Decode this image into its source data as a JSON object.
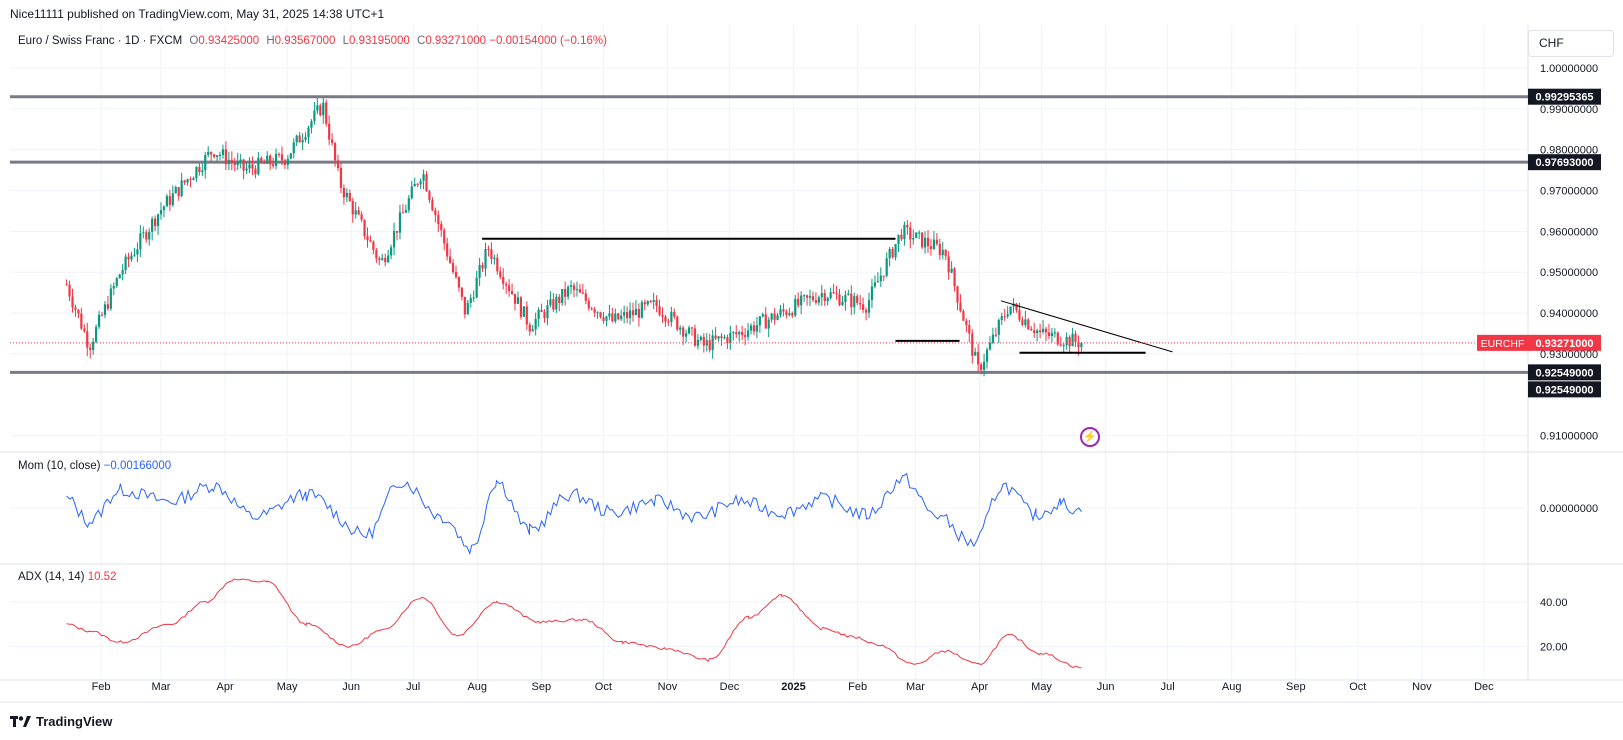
{
  "header": {
    "publisher": "Nice11111 published on TradingView.com, May 31, 2025 14:38 UTC+1"
  },
  "legend": {
    "symbol": "Euro / Swiss Franc · 1D · FXCM",
    "o_label": "O",
    "o": "0.93425000",
    "h_label": "H",
    "h": "0.93567000",
    "l_label": "L",
    "l": "0.93195000",
    "c_label": "C",
    "c": "0.93271000",
    "change": "−0.00154000 (−0.16%)"
  },
  "currency": "CHF",
  "mom_legend": {
    "name": "Mom (10, close)",
    "value": "−0.00166000"
  },
  "adx_legend": {
    "name": "ADX (14, 14)",
    "value": "10.52"
  },
  "footer": {
    "logo_text": "TradingView"
  },
  "colors": {
    "up": "#089981",
    "down": "#f23645",
    "mom": "#2962ff",
    "adx": "#f23645",
    "hline": "#787b86",
    "drawing": "#000000",
    "alert": "#9c27b0"
  },
  "chart_data": [
    {
      "type": "candlestick",
      "symbol": "EURCHF",
      "title": "Euro / Swiss Franc · 1D · FXCM",
      "x_axis_labels": [
        "Feb",
        "Mar",
        "Apr",
        "May",
        "Jun",
        "Jul",
        "Aug",
        "Sep",
        "Oct",
        "Nov",
        "Dec",
        "2025",
        "Feb",
        "Mar",
        "Apr",
        "May",
        "Jun",
        "Jul",
        "Aug",
        "Sep",
        "Oct",
        "Nov",
        "Dec"
      ],
      "y_axis_labels": [
        "1.00000000",
        "0.99000000",
        "0.98000000",
        "0.97000000",
        "0.96000000",
        "0.95000000",
        "0.94000000",
        "0.93000000",
        "0.91000000"
      ],
      "ylim": [
        0.906,
        1.0105
      ],
      "price_path": [
        [
          "2024-01-25",
          0.947
        ],
        [
          "2024-02-05",
          0.932
        ],
        [
          "2024-02-20",
          0.95
        ],
        [
          "2024-03-10",
          0.965
        ],
        [
          "2024-04-05",
          0.98
        ],
        [
          "2024-04-20",
          0.975
        ],
        [
          "2024-05-10",
          0.978
        ],
        [
          "2024-05-28",
          0.991
        ],
        [
          "2024-06-05",
          0.972
        ],
        [
          "2024-06-25",
          0.952
        ],
        [
          "2024-07-15",
          0.975
        ],
        [
          "2024-08-05",
          0.94
        ],
        [
          "2024-08-16",
          0.956
        ],
        [
          "2024-09-05",
          0.937
        ],
        [
          "2024-09-25",
          0.946
        ],
        [
          "2024-10-15",
          0.938
        ],
        [
          "2024-11-05",
          0.942
        ],
        [
          "2024-11-28",
          0.932
        ],
        [
          "2024-12-15",
          0.935
        ],
        [
          "2025-01-05",
          0.94
        ],
        [
          "2025-01-25",
          0.945
        ],
        [
          "2025-02-15",
          0.942
        ],
        [
          "2025-03-04",
          0.96
        ],
        [
          "2025-03-25",
          0.955
        ],
        [
          "2025-04-10",
          0.926
        ],
        [
          "2025-04-25",
          0.942
        ],
        [
          "2025-05-10",
          0.935
        ],
        [
          "2025-05-30",
          0.9327
        ]
      ],
      "last_price": 0.93271,
      "last_price_label": "EURCHF",
      "last_price_text": "0.93271000",
      "horizontal_levels": [
        {
          "value": 0.99295365,
          "label": "0.99295365"
        },
        {
          "value": 0.97693,
          "label": "0.97693000"
        },
        {
          "value": 0.92549,
          "label": "0.92549000"
        },
        {
          "value": 0.92549,
          "label": "0.92549000"
        }
      ],
      "trend_lines": [
        {
          "from": [
            "2024-08-13",
            0.9582
          ],
          "to": [
            "2025-03-01",
            0.9582
          ]
        },
        {
          "from": [
            "2025-03-01",
            0.9332
          ],
          "to": [
            "2025-04-01",
            0.9332
          ]
        },
        {
          "from": [
            "2025-04-21",
            0.943
          ],
          "to": [
            "2025-07-13",
            0.9305
          ]
        },
        {
          "from": [
            "2025-04-30",
            0.9303
          ],
          "to": [
            "2025-06-30",
            0.9303
          ]
        }
      ]
    },
    {
      "type": "line",
      "name": "Mom (10, close)",
      "y_axis_labels": [
        "0.00000000"
      ],
      "last_value": -0.00166,
      "points": [
        [
          "2024-01-25",
          0.004
        ],
        [
          "2024-02-05",
          -0.006
        ],
        [
          "2024-02-20",
          0.008
        ],
        [
          "2024-03-15",
          0.003
        ],
        [
          "2024-04-05",
          0.01
        ],
        [
          "2024-04-25",
          -0.004
        ],
        [
          "2024-05-20",
          0.006
        ],
        [
          "2024-06-18",
          -0.012
        ],
        [
          "2024-07-05",
          0.012
        ],
        [
          "2024-07-25",
          -0.004
        ],
        [
          "2024-08-08",
          -0.018
        ],
        [
          "2024-08-20",
          0.012
        ],
        [
          "2024-09-05",
          -0.01
        ],
        [
          "2024-09-25",
          0.006
        ],
        [
          "2024-10-15",
          -0.002
        ],
        [
          "2024-11-05",
          0.003
        ],
        [
          "2024-11-25",
          -0.004
        ],
        [
          "2024-12-15",
          0.003
        ],
        [
          "2025-01-05",
          -0.002
        ],
        [
          "2025-01-25",
          0.004
        ],
        [
          "2025-02-15",
          -0.003
        ],
        [
          "2025-03-05",
          0.013
        ],
        [
          "2025-03-20",
          -0.003
        ],
        [
          "2025-04-08",
          -0.016
        ],
        [
          "2025-04-22",
          0.01
        ],
        [
          "2025-05-08",
          -0.003
        ],
        [
          "2025-05-20",
          0.002
        ],
        [
          "2025-05-30",
          -0.00166
        ]
      ]
    },
    {
      "type": "line",
      "name": "ADX (14, 14)",
      "y_axis_labels": [
        "40.00",
        "20.00"
      ],
      "last_value": 10.52,
      "points": [
        [
          "2024-01-25",
          30
        ],
        [
          "2024-02-05",
          27
        ],
        [
          "2024-02-20",
          22
        ],
        [
          "2024-03-15",
          30
        ],
        [
          "2024-04-01",
          40
        ],
        [
          "2024-04-15",
          50
        ],
        [
          "2024-05-01",
          49
        ],
        [
          "2024-05-20",
          30
        ],
        [
          "2024-06-10",
          20
        ],
        [
          "2024-06-25",
          27
        ],
        [
          "2024-07-15",
          42
        ],
        [
          "2024-08-01",
          25
        ],
        [
          "2024-08-20",
          40
        ],
        [
          "2024-09-10",
          31
        ],
        [
          "2024-10-01",
          32
        ],
        [
          "2024-10-20",
          22
        ],
        [
          "2024-11-10",
          19
        ],
        [
          "2024-12-01",
          14
        ],
        [
          "2024-12-20",
          33
        ],
        [
          "2025-01-05",
          43
        ],
        [
          "2025-01-25",
          28
        ],
        [
          "2025-02-10",
          24
        ],
        [
          "2025-02-20",
          21
        ],
        [
          "2025-03-10",
          12
        ],
        [
          "2025-03-25",
          18
        ],
        [
          "2025-04-10",
          12
        ],
        [
          "2025-04-25",
          25
        ],
        [
          "2025-05-10",
          17
        ],
        [
          "2025-05-30",
          10.52
        ]
      ]
    }
  ]
}
